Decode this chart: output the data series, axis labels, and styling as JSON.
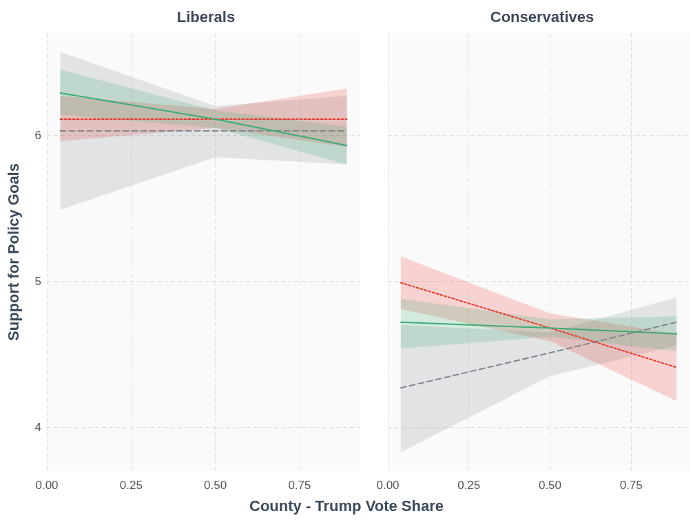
{
  "chart_data": [
    {
      "type": "line",
      "title": "Liberals",
      "ylabel": "Support for Policy Goals",
      "xlabel": "County - Trump Vote Share",
      "xlim": [
        0,
        0.93
      ],
      "xticks": [
        {
          "value": 0,
          "label": "0.00"
        },
        {
          "value": 0.25,
          "label": "0.25"
        },
        {
          "value": 0.5,
          "label": "0.50"
        },
        {
          "value": 0.75,
          "label": "0.75"
        }
      ],
      "ylim": [
        3.7,
        6.7
      ],
      "yticks": [
        4,
        5,
        6
      ],
      "grid": true,
      "marker": "none",
      "series": [
        {
          "color": "#808590",
          "line_style": "dashed",
          "x": [
            0.04,
            0.5,
            0.89
          ],
          "values": [
            6.03,
            6.03,
            6.03
          ],
          "lower": [
            5.49,
            5.85,
            5.8
          ],
          "upper": [
            6.57,
            6.2,
            6.27
          ]
        },
        {
          "color": "#e8372a",
          "line_style": "dotted",
          "x": [
            0.04,
            0.5,
            0.89
          ],
          "values": [
            6.11,
            6.11,
            6.11
          ],
          "lower": [
            5.96,
            6.05,
            5.92
          ],
          "upper": [
            6.27,
            6.18,
            6.32
          ]
        },
        {
          "color": "#3daa75",
          "line_style": "solid",
          "x": [
            0.04,
            0.5,
            0.89
          ],
          "values": [
            6.29,
            6.11,
            5.93
          ],
          "lower": [
            6.14,
            6.05,
            5.8
          ],
          "upper": [
            6.45,
            6.17,
            6.06
          ]
        }
      ]
    },
    {
      "type": "line",
      "title": "Conservatives",
      "xlim": [
        0,
        0.93
      ],
      "xticks": [
        {
          "value": 0,
          "label": "0.00"
        },
        {
          "value": 0.25,
          "label": "0.25"
        },
        {
          "value": 0.5,
          "label": "0.50"
        },
        {
          "value": 0.75,
          "label": "0.75"
        }
      ],
      "ylim": [
        3.7,
        6.7
      ],
      "yticks": [
        4,
        5,
        6
      ],
      "tick_labels": "x",
      "grid": true,
      "marker": "none",
      "series": [
        {
          "color": "#808590",
          "line_style": "dashed",
          "x": [
            0.04,
            0.5,
            0.89
          ],
          "values": [
            4.27,
            4.51,
            4.72
          ],
          "lower": [
            3.83,
            4.35,
            4.56
          ],
          "upper": [
            4.7,
            4.65,
            4.89
          ]
        },
        {
          "color": "#e8372a",
          "line_style": "dotted",
          "x": [
            0.04,
            0.5,
            0.89
          ],
          "values": [
            4.99,
            4.68,
            4.41
          ],
          "lower": [
            4.81,
            4.59,
            4.18
          ],
          "upper": [
            5.17,
            4.78,
            4.64
          ]
        },
        {
          "color": "#3daa75",
          "line_style": "solid",
          "x": [
            0.04,
            0.5,
            0.89
          ],
          "values": [
            4.72,
            4.68,
            4.64
          ],
          "lower": [
            4.54,
            4.62,
            4.52
          ],
          "upper": [
            4.88,
            4.74,
            4.76
          ]
        }
      ]
    }
  ]
}
